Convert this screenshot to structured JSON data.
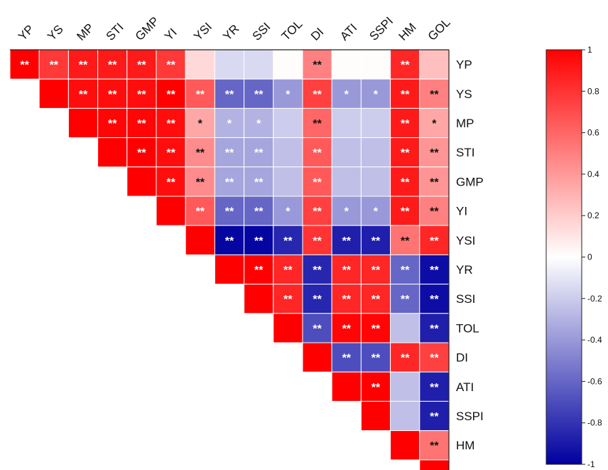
{
  "chart_data": {
    "type": "heatmap",
    "title": "",
    "variables": [
      "YP",
      "YS",
      "MP",
      "STI",
      "GMP",
      "YI",
      "YSI",
      "YR",
      "SSI",
      "TOL",
      "DI",
      "ATI",
      "SSPI",
      "HM",
      "GOL"
    ],
    "matrix": [
      [
        1,
        0.78,
        0.9,
        0.9,
        0.9,
        0.78,
        0.15,
        -0.15,
        -0.15,
        0.01,
        0.5,
        0.01,
        0.01,
        0.85,
        0.25
      ],
      [
        null,
        1,
        0.95,
        0.95,
        0.95,
        1,
        0.65,
        -0.6,
        -0.6,
        -0.4,
        0.75,
        -0.4,
        -0.4,
        0.9,
        0.5
      ],
      [
        null,
        null,
        1,
        0.98,
        0.98,
        0.95,
        0.35,
        -0.3,
        -0.3,
        -0.2,
        0.6,
        -0.2,
        -0.2,
        0.9,
        0.35
      ],
      [
        null,
        null,
        null,
        1,
        1,
        0.95,
        0.45,
        -0.35,
        -0.35,
        -0.25,
        0.65,
        -0.25,
        -0.25,
        0.9,
        0.42
      ],
      [
        null,
        null,
        null,
        null,
        1,
        0.95,
        0.45,
        -0.35,
        -0.35,
        -0.25,
        0.65,
        -0.25,
        -0.25,
        0.9,
        0.42
      ],
      [
        null,
        null,
        null,
        null,
        null,
        1,
        0.65,
        -0.6,
        -0.6,
        -0.4,
        0.75,
        -0.4,
        -0.4,
        0.9,
        0.5
      ],
      [
        null,
        null,
        null,
        null,
        null,
        null,
        1,
        -0.98,
        -0.98,
        -0.85,
        0.8,
        -0.88,
        -0.88,
        0.55,
        0.85
      ],
      [
        null,
        null,
        null,
        null,
        null,
        null,
        null,
        1,
        1,
        0.85,
        -0.85,
        0.85,
        0.85,
        -0.6,
        -0.95
      ],
      [
        null,
        null,
        null,
        null,
        null,
        null,
        null,
        null,
        1,
        0.85,
        -0.85,
        0.85,
        0.85,
        -0.6,
        -0.95
      ],
      [
        null,
        null,
        null,
        null,
        null,
        null,
        null,
        null,
        null,
        1,
        -0.7,
        0.98,
        0.98,
        -0.25,
        -0.88
      ],
      [
        null,
        null,
        null,
        null,
        null,
        null,
        null,
        null,
        null,
        null,
        1,
        -0.7,
        -0.7,
        0.85,
        0.75
      ],
      [
        null,
        null,
        null,
        null,
        null,
        null,
        null,
        null,
        null,
        null,
        null,
        1,
        1,
        -0.25,
        -0.88
      ],
      [
        null,
        null,
        null,
        null,
        null,
        null,
        null,
        null,
        null,
        null,
        null,
        null,
        1,
        -0.25,
        -0.88
      ],
      [
        null,
        null,
        null,
        null,
        null,
        null,
        null,
        null,
        null,
        null,
        null,
        null,
        null,
        1,
        0.55
      ],
      [
        null,
        null,
        null,
        null,
        null,
        null,
        null,
        null,
        null,
        null,
        null,
        null,
        null,
        null,
        1
      ]
    ],
    "significance": [
      [
        "**",
        "**",
        "**",
        "**",
        "**",
        "**",
        "",
        "",
        "",
        "",
        "**",
        "",
        "",
        "**",
        ""
      ],
      [
        null,
        "",
        "**",
        "**",
        "**",
        "**",
        "**",
        "**",
        "**",
        "*",
        "**",
        "*",
        "*",
        "**",
        "**"
      ],
      [
        null,
        null,
        "",
        "**",
        "**",
        "**",
        "*",
        "*",
        "*",
        "",
        "**",
        "",
        "",
        "**",
        "*"
      ],
      [
        null,
        null,
        null,
        "",
        "**",
        "**",
        "**",
        "**",
        "**",
        "",
        "**",
        "",
        "",
        "**",
        "**"
      ],
      [
        null,
        null,
        null,
        null,
        "",
        "**",
        "**",
        "**",
        "**",
        "",
        "**",
        "",
        "",
        "**",
        "**"
      ],
      [
        null,
        null,
        null,
        null,
        null,
        "",
        "**",
        "**",
        "**",
        "*",
        "**",
        "*",
        "*",
        "**",
        "**"
      ],
      [
        null,
        null,
        null,
        null,
        null,
        null,
        "",
        "**",
        "**",
        "**",
        "**",
        "**",
        "**",
        "**",
        "**"
      ],
      [
        null,
        null,
        null,
        null,
        null,
        null,
        null,
        "",
        "**",
        "**",
        "**",
        "**",
        "**",
        "**",
        "**"
      ],
      [
        null,
        null,
        null,
        null,
        null,
        null,
        null,
        null,
        "",
        "**",
        "**",
        "**",
        "**",
        "**",
        "**"
      ],
      [
        null,
        null,
        null,
        null,
        null,
        null,
        null,
        null,
        null,
        "",
        "**",
        "**",
        "**",
        "",
        "**"
      ],
      [
        null,
        null,
        null,
        null,
        null,
        null,
        null,
        null,
        null,
        null,
        "",
        "**",
        "**",
        "**",
        "**"
      ],
      [
        null,
        null,
        null,
        null,
        null,
        null,
        null,
        null,
        null,
        null,
        null,
        "",
        "**",
        "",
        "**"
      ],
      [
        null,
        null,
        null,
        null,
        null,
        null,
        null,
        null,
        null,
        null,
        null,
        null,
        "",
        "",
        "**"
      ],
      [
        null,
        null,
        null,
        null,
        null,
        null,
        null,
        null,
        null,
        null,
        null,
        null,
        null,
        "",
        "**"
      ],
      [
        null,
        null,
        null,
        null,
        null,
        null,
        null,
        null,
        null,
        null,
        null,
        null,
        null,
        null,
        "**"
      ]
    ],
    "color_scale": {
      "min": -1,
      "max": 1,
      "low_color": "#0000a0",
      "mid_color": "#ffffff",
      "high_color": "#ff0000",
      "ticks": [
        1,
        0.8,
        0.6,
        0.4,
        0.2,
        0,
        -0.2,
        -0.4,
        -0.6,
        -0.8,
        -1
      ]
    },
    "legend_placement": "right",
    "grid": false
  }
}
